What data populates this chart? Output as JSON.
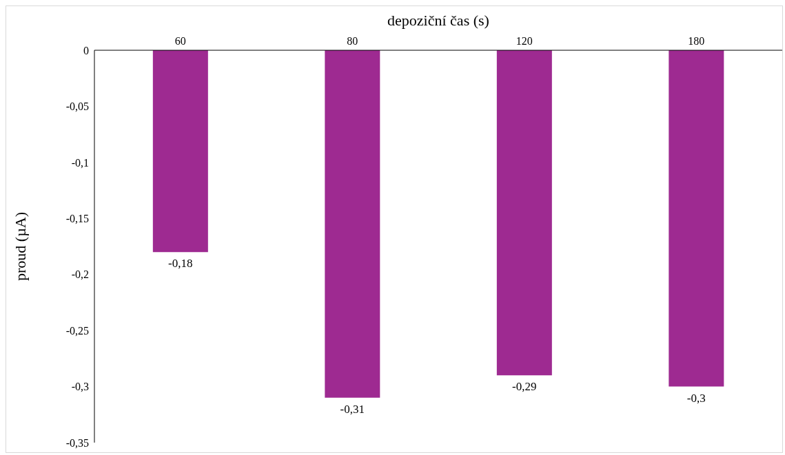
{
  "chart_data": {
    "type": "bar",
    "xlabel": "depoziční čas (s)",
    "ylabel": "proud (µA)",
    "categories": [
      "60",
      "80",
      "120",
      "180"
    ],
    "values": [
      -0.18,
      -0.31,
      -0.29,
      -0.3
    ],
    "value_labels": [
      "-0,18",
      "-0,31",
      "-0,29",
      "-0,3"
    ],
    "color": "#9e2a91",
    "ylim": [
      -0.35,
      0
    ],
    "yticks": [
      0,
      {
        "value": -0.05,
        "label": "-0,05"
      },
      {
        "value": -0.1,
        "label": "-0,1"
      },
      {
        "value": -0.15,
        "label": "-0,15"
      },
      {
        "value": -0.2,
        "label": "-0,2"
      },
      {
        "value": -0.25,
        "label": "-0,25"
      },
      {
        "value": -0.3,
        "label": "-0,3"
      },
      {
        "value": -0.35,
        "label": "-0,35"
      }
    ],
    "grid": false,
    "legend": false
  }
}
